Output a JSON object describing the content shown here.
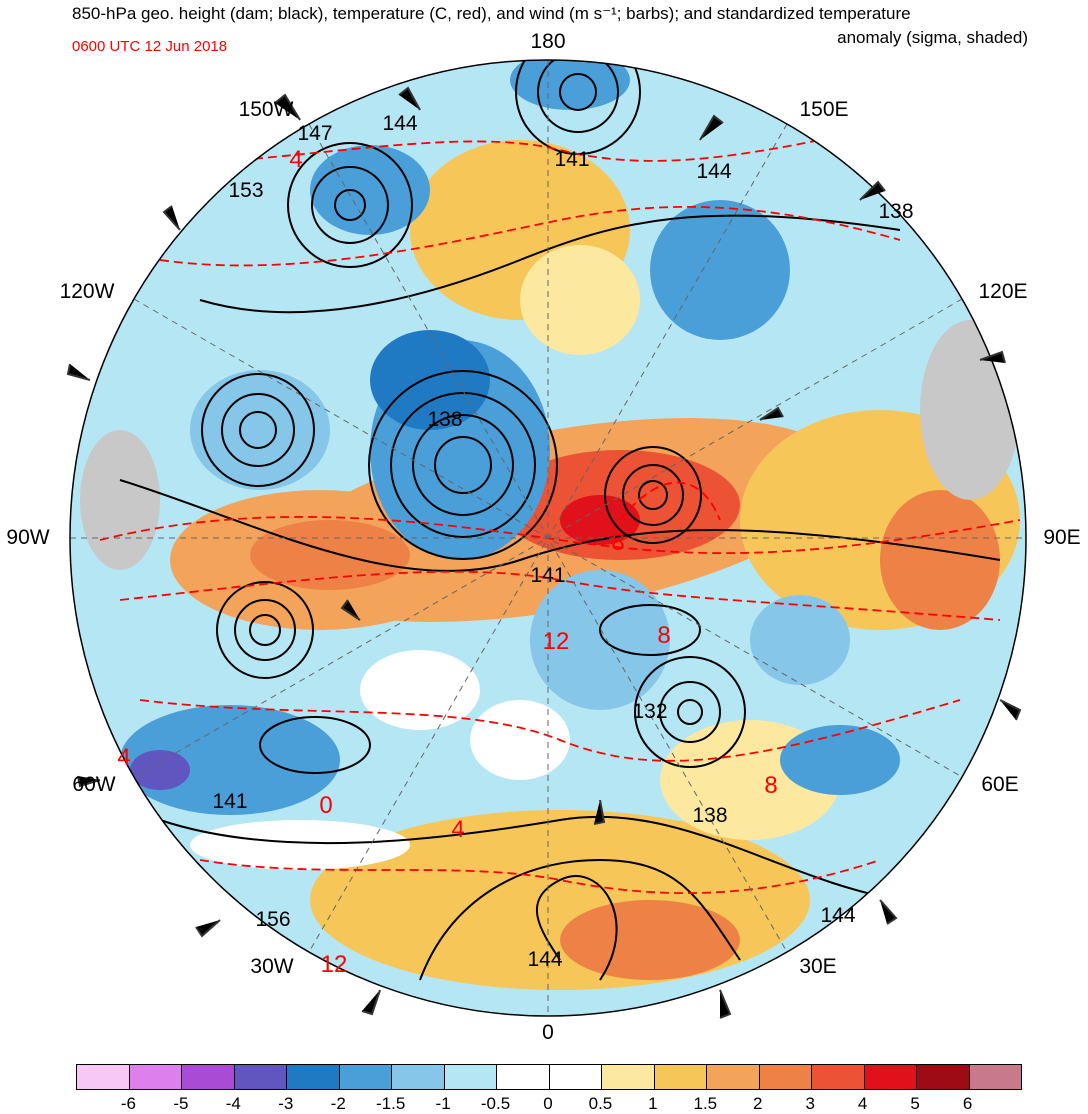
{
  "header": {
    "title_line1": "850-hPa geo. height (dam; black), temperature (C, red), and wind (m s⁻¹; barbs); and standardized temperature",
    "title_line2": "anomaly (sigma, shaded)",
    "valid_time": "0600 UTC 12 Jun 2018"
  },
  "longitude_labels": {
    "n180": "180",
    "e150": "150E",
    "e120": "120E",
    "e90": "90E",
    "e60": "60E",
    "e30": "30E",
    "n0": "0",
    "w30": "30W",
    "w60": "60W",
    "w90": "90W",
    "w120": "120W",
    "w150": "150W"
  },
  "height_contour_labels": [
    "147",
    "144",
    "153",
    "141",
    "144",
    "138",
    "138",
    "141",
    "132",
    "138",
    "141",
    "156",
    "144",
    "144"
  ],
  "temperature_contour_labels": [
    "4",
    "8",
    "8",
    "12",
    "8",
    "4",
    "0",
    "4",
    "12"
  ],
  "colorbar": {
    "colors": [
      "#f7c8f5",
      "#dd7fec",
      "#a94bd4",
      "#6155c0",
      "#1f7ac3",
      "#4a9fd8",
      "#86c6e9",
      "#b5e6f4",
      "#ffffff",
      "#ffffff",
      "#fde8a0",
      "#f7c659",
      "#f3a35a",
      "#ee8246",
      "#ec5234",
      "#e0111a",
      "#9f0b14",
      "#c87a8a"
    ],
    "tick_labels": [
      "-6",
      "-5",
      "-4",
      "-3",
      "-2",
      "-1.5",
      "-1",
      "-0.5",
      "0",
      "0.5",
      "1",
      "1.5",
      "2",
      "3",
      "4",
      "5",
      "6"
    ]
  },
  "colors": {
    "height_contour": "#000000",
    "temperature_contour": "#ff0000",
    "wind_barb": "#333333",
    "land_mask": "#c8c8c8"
  }
}
